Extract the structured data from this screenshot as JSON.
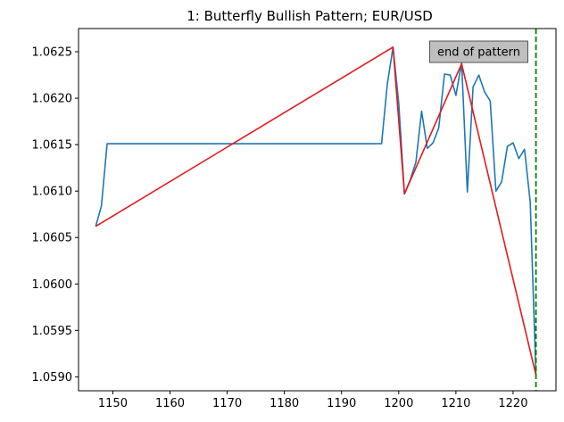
{
  "chart_data": {
    "type": "line",
    "title": "1: Butterfly Bullish  Pattern; EUR/USD",
    "xlabel": "",
    "ylabel": "",
    "xlim": [
      1144,
      1227.5
    ],
    "ylim": [
      1.05885,
      1.06275
    ],
    "x_ticks": [
      1150,
      1160,
      1170,
      1180,
      1190,
      1200,
      1210,
      1220
    ],
    "y_ticks": [
      1.059,
      1.0595,
      1.06,
      1.0605,
      1.061,
      1.0615,
      1.062,
      1.0625
    ],
    "y_tick_labels": [
      "1.0590",
      "1.0595",
      "1.0600",
      "1.0605",
      "1.0610",
      "1.0615",
      "1.0620",
      "1.0625"
    ],
    "grid": false,
    "series": [
      {
        "role": "price",
        "color": "#1f77b4",
        "points": [
          [
            1147,
            1.06062
          ],
          [
            1148,
            1.06084
          ],
          [
            1149,
            1.06151
          ],
          [
            1150,
            1.06151
          ],
          [
            1160,
            1.06151
          ],
          [
            1170,
            1.06151
          ],
          [
            1180,
            1.06151
          ],
          [
            1190,
            1.06151
          ],
          [
            1197,
            1.06151
          ],
          [
            1198,
            1.06215
          ],
          [
            1199,
            1.06255
          ],
          [
            1200,
            1.06195
          ],
          [
            1201,
            1.06097
          ],
          [
            1202,
            1.06112
          ],
          [
            1203,
            1.06131
          ],
          [
            1204,
            1.06186
          ],
          [
            1205,
            1.06146
          ],
          [
            1206,
            1.06152
          ],
          [
            1207,
            1.06168
          ],
          [
            1208,
            1.06226
          ],
          [
            1209,
            1.06225
          ],
          [
            1210,
            1.06203
          ],
          [
            1211,
            1.06238
          ],
          [
            1212,
            1.06099
          ],
          [
            1213,
            1.06212
          ],
          [
            1214,
            1.06225
          ],
          [
            1215,
            1.06207
          ],
          [
            1216,
            1.06197
          ],
          [
            1217,
            1.061
          ],
          [
            1218,
            1.0611
          ],
          [
            1219,
            1.06148
          ],
          [
            1220,
            1.06152
          ],
          [
            1221,
            1.06135
          ],
          [
            1222,
            1.06145
          ],
          [
            1223,
            1.06088
          ],
          [
            1224,
            1.05902
          ]
        ]
      },
      {
        "role": "pattern",
        "color": "#e31a1c",
        "points": [
          [
            1147,
            1.06062
          ],
          [
            1199,
            1.06255
          ],
          [
            1201,
            1.06097
          ],
          [
            1211,
            1.06237
          ],
          [
            1224,
            1.05902
          ]
        ]
      }
    ],
    "vline": {
      "x": 1224,
      "color": "#008000",
      "style": "dashed"
    },
    "annotation": {
      "text": "end of pattern",
      "x": 1214,
      "y": 1.0625
    }
  }
}
